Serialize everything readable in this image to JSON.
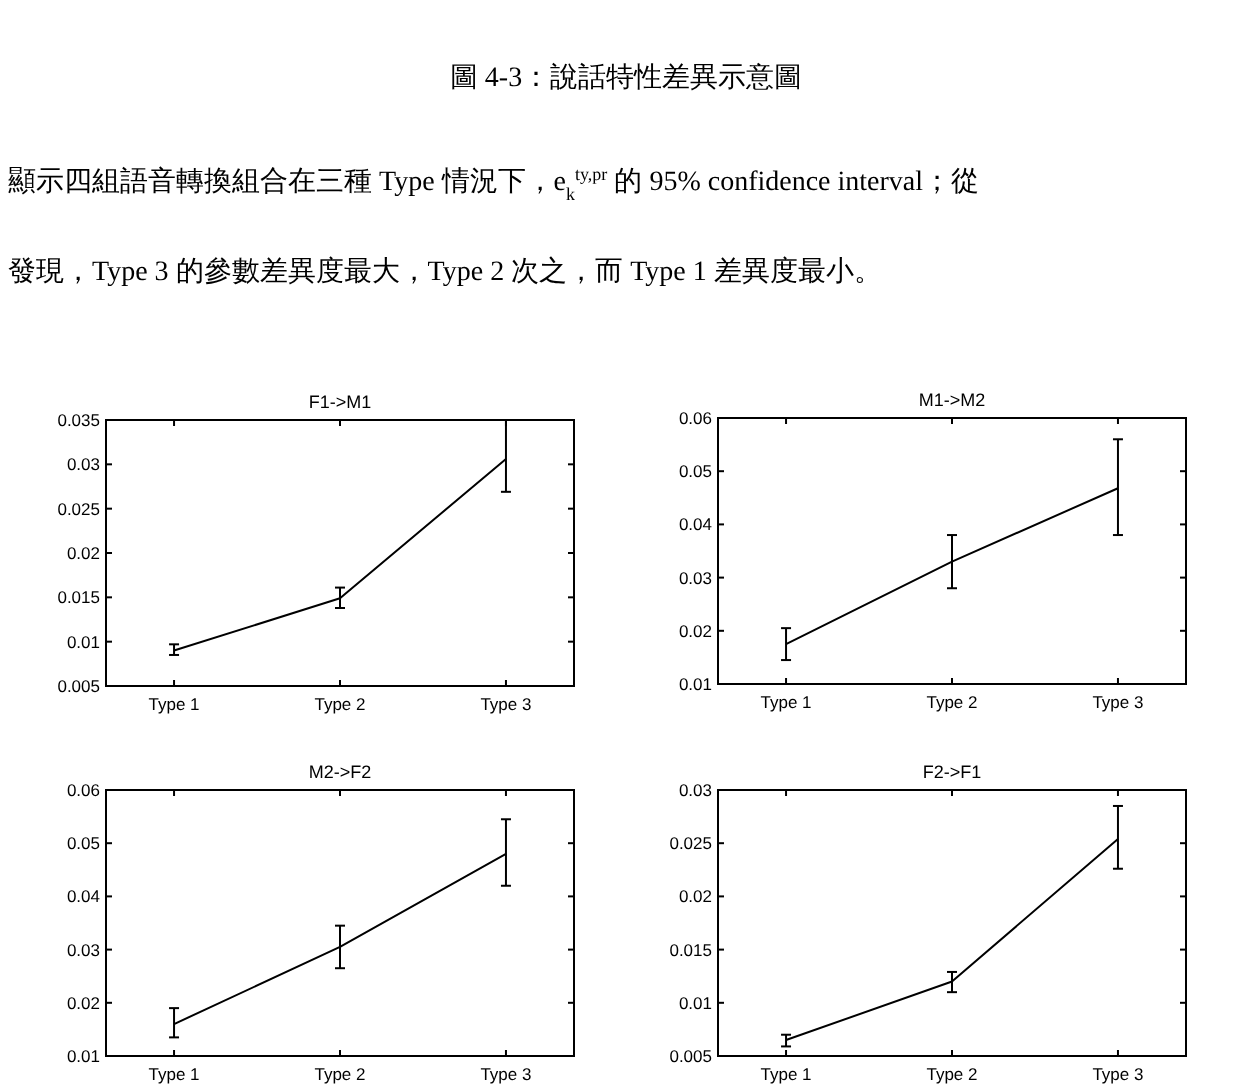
{
  "chart_data": [
    {
      "type": "line",
      "title": "F1->M1",
      "categories": [
        "Type 1",
        "Type 2",
        "Type 3"
      ],
      "series": [
        {
          "color": "#000000",
          "values": [
            0.009,
            0.0149,
            0.0306
          ],
          "errors": [
            [
              0.0085,
              0.0097
            ],
            [
              0.0138,
              0.0161
            ],
            [
              0.0269,
              0.035
            ]
          ]
        }
      ],
      "ylim": [
        0.005,
        0.035
      ],
      "yticks": [
        0.005,
        0.01,
        0.015,
        0.02,
        0.025,
        0.03,
        0.035
      ],
      "marker": "none",
      "line_style": "solid",
      "grid": false,
      "annotations": [
        "圖 4-3：說話特性差異示意圖",
        "顯示四組語音轉換組合在三種 Type 情況下，e$_{k}$$^{ty,pr}$ 的 95% confidence interval；從",
        "發現，Type 3 的參數差異度最大，Type 2 次之，而 Type 1 差異度最小。"
      ]
    },
    {
      "type": "line",
      "title": "M1->M2",
      "categories": [
        "Type 1",
        "Type 2",
        "Type 3"
      ],
      "series": [
        {
          "color": "#000000",
          "values": [
            0.0175,
            0.033,
            0.0468
          ],
          "errors": [
            [
              0.0145,
              0.0205
            ],
            [
              0.028,
              0.038
            ],
            [
              0.038,
              0.056
            ]
          ]
        }
      ],
      "ylim": [
        0.01,
        0.06
      ],
      "yticks": [
        0.01,
        0.02,
        0.03,
        0.04,
        0.05,
        0.06
      ],
      "marker": "none",
      "line_style": "solid",
      "grid": false
    },
    {
      "type": "line",
      "title": "M2->F2",
      "categories": [
        "Type 1",
        "Type 2",
        "Type 3"
      ],
      "series": [
        {
          "color": "#000000",
          "values": [
            0.016,
            0.0305,
            0.048
          ],
          "errors": [
            [
              0.0135,
              0.019
            ],
            [
              0.0265,
              0.0345
            ],
            [
              0.042,
              0.0545
            ]
          ]
        }
      ],
      "ylim": [
        0.01,
        0.06
      ],
      "yticks": [
        0.01,
        0.02,
        0.03,
        0.04,
        0.05,
        0.06
      ],
      "marker": "none",
      "line_style": "solid",
      "grid": false
    },
    {
      "type": "line",
      "title": "F2->F1",
      "categories": [
        "Type 1",
        "Type 2",
        "Type 3"
      ],
      "series": [
        {
          "color": "#000000",
          "values": [
            0.0065,
            0.012,
            0.0254
          ],
          "errors": [
            [
              0.0059,
              0.007
            ],
            [
              0.011,
              0.0129
            ],
            [
              0.0226,
              0.0285
            ]
          ]
        }
      ],
      "ylim": [
        0.005,
        0.03
      ],
      "yticks": [
        0.005,
        0.01,
        0.015,
        0.02,
        0.025,
        0.03
      ],
      "marker": "none",
      "line_style": "solid",
      "grid": false
    }
  ]
}
